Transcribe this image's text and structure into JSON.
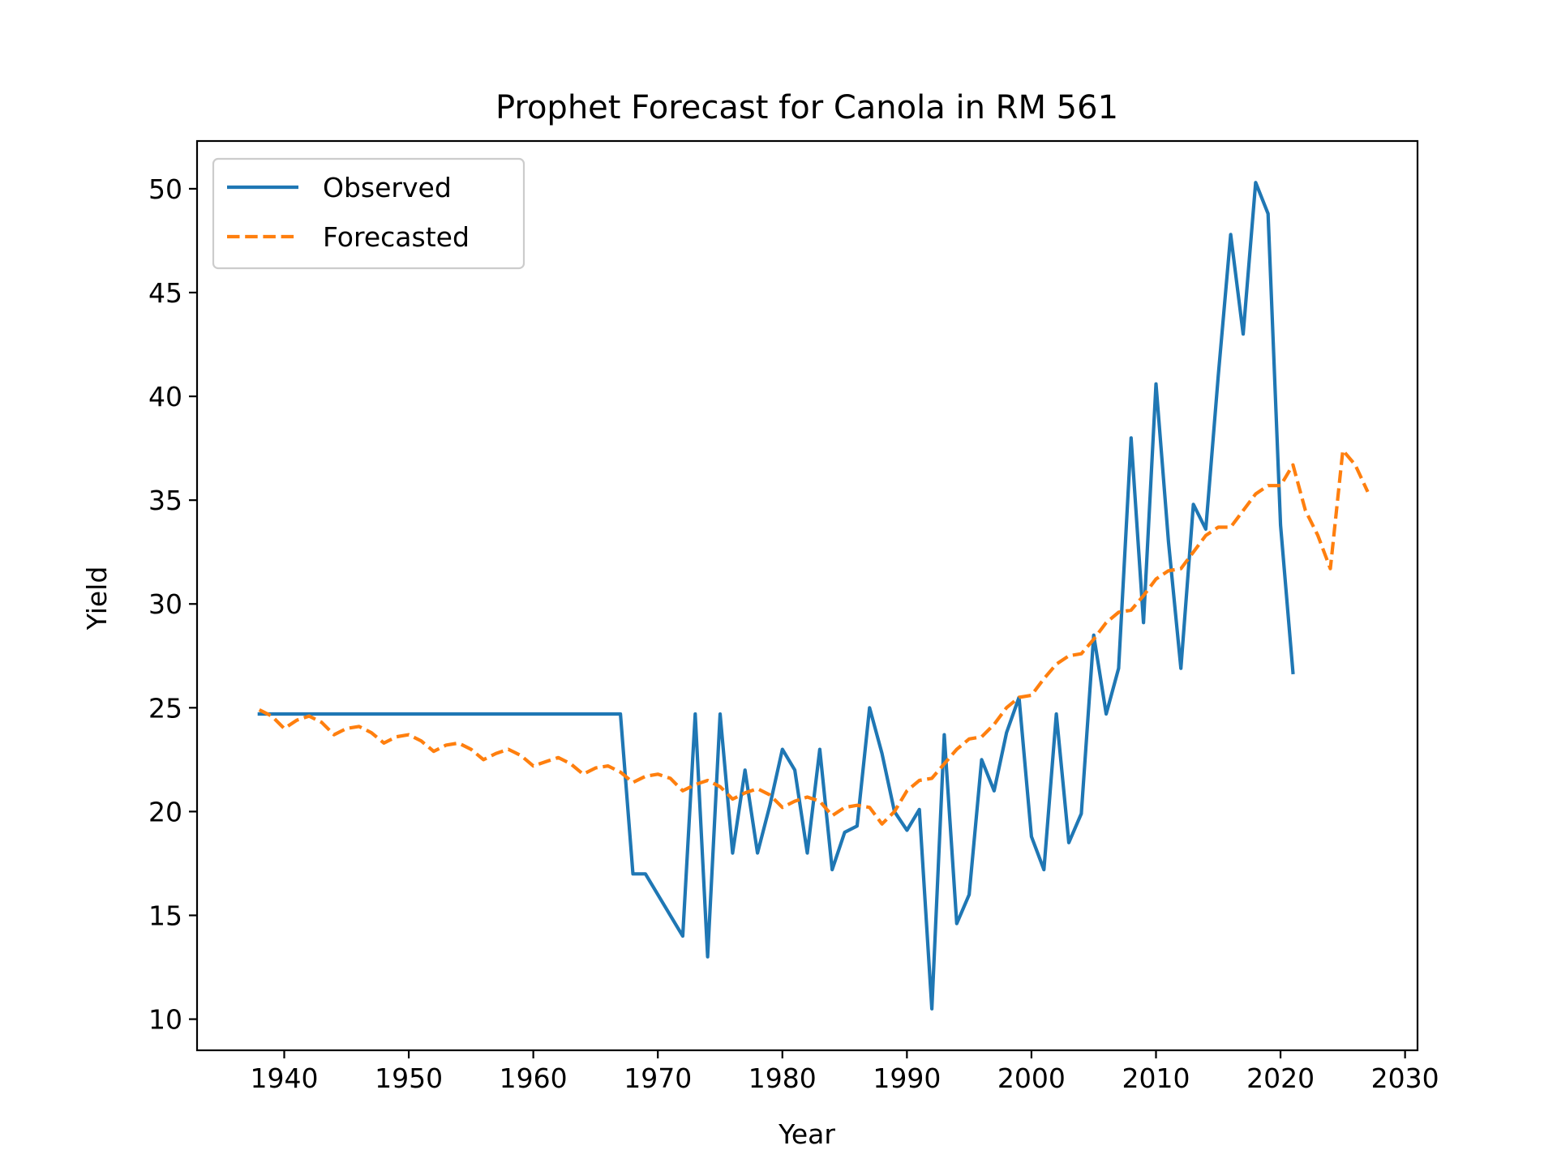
{
  "chart_data": {
    "type": "line",
    "title": "Prophet Forecast for Canola in RM 561",
    "xlabel": "Year",
    "ylabel": "Yield",
    "xlim": [
      1933,
      2031
    ],
    "ylim": [
      8.5,
      52.3
    ],
    "xticks": [
      1940,
      1950,
      1960,
      1970,
      1980,
      1990,
      2000,
      2010,
      2020,
      2030
    ],
    "yticks": [
      10,
      15,
      20,
      25,
      30,
      35,
      40,
      45,
      50
    ],
    "grid": false,
    "legend_position": "upper-left",
    "series": [
      {
        "name": "Observed",
        "color": "#1f77b4",
        "style": "solid",
        "x": [
          1938,
          1967,
          1968,
          1969,
          1972,
          1973,
          1974,
          1975,
          1976,
          1977,
          1978,
          1979,
          1980,
          1981,
          1982,
          1983,
          1984,
          1985,
          1986,
          1987,
          1988,
          1989,
          1990,
          1991,
          1992,
          1993,
          1994,
          1995,
          1996,
          1997,
          1998,
          1999,
          2000,
          2001,
          2002,
          2003,
          2004,
          2005,
          2006,
          2007,
          2008,
          2009,
          2010,
          2011,
          2012,
          2013,
          2014,
          2015,
          2016,
          2017,
          2018,
          2019,
          2020,
          2021
        ],
        "y": [
          24.7,
          24.7,
          17.0,
          17.0,
          14.0,
          24.7,
          13.0,
          24.7,
          18.0,
          22.0,
          18.0,
          20.3,
          23.0,
          22.0,
          18.0,
          23.0,
          17.2,
          19.0,
          19.3,
          25.0,
          22.8,
          20.0,
          19.1,
          20.1,
          10.5,
          23.7,
          14.6,
          16.0,
          22.5,
          21.0,
          23.8,
          25.5,
          18.8,
          17.2,
          24.7,
          18.5,
          19.9,
          28.5,
          24.7,
          26.9,
          38.0,
          29.1,
          40.6,
          33.0,
          26.9,
          34.8,
          33.6,
          41.0,
          47.8,
          43.0,
          50.3,
          48.8,
          33.8,
          26.7
        ]
      },
      {
        "name": "Forecasted",
        "color": "#ff7f0e",
        "style": "dashed",
        "x": [
          1938,
          1939,
          1940,
          1941,
          1942,
          1943,
          1944,
          1945,
          1946,
          1947,
          1948,
          1949,
          1950,
          1951,
          1952,
          1953,
          1954,
          1955,
          1956,
          1957,
          1958,
          1959,
          1960,
          1961,
          1962,
          1963,
          1964,
          1965,
          1966,
          1967,
          1968,
          1969,
          1970,
          1971,
          1972,
          1973,
          1974,
          1975,
          1976,
          1977,
          1978,
          1979,
          1980,
          1981,
          1982,
          1983,
          1984,
          1985,
          1986,
          1987,
          1988,
          1989,
          1990,
          1991,
          1992,
          1993,
          1994,
          1995,
          1996,
          1997,
          1998,
          1999,
          2000,
          2001,
          2002,
          2003,
          2004,
          2005,
          2006,
          2007,
          2008,
          2009,
          2010,
          2011,
          2012,
          2013,
          2014,
          2015,
          2016,
          2017,
          2018,
          2019,
          2020,
          2021,
          2022,
          2023,
          2024,
          2025,
          2026,
          2027
        ],
        "y": [
          24.9,
          24.6,
          24.0,
          24.4,
          24.6,
          24.3,
          23.7,
          24.0,
          24.1,
          23.8,
          23.3,
          23.6,
          23.7,
          23.4,
          22.9,
          23.2,
          23.3,
          23.0,
          22.5,
          22.8,
          23.0,
          22.7,
          22.2,
          22.4,
          22.6,
          22.3,
          21.8,
          22.1,
          22.2,
          21.9,
          21.4,
          21.7,
          21.8,
          21.6,
          21.0,
          21.3,
          21.5,
          21.2,
          20.6,
          20.9,
          21.1,
          20.8,
          20.2,
          20.5,
          20.7,
          20.5,
          19.8,
          20.2,
          20.3,
          20.2,
          19.4,
          20.0,
          21.0,
          21.5,
          21.6,
          22.3,
          23.0,
          23.5,
          23.6,
          24.2,
          25.0,
          25.5,
          25.6,
          26.4,
          27.1,
          27.5,
          27.6,
          28.3,
          29.1,
          29.6,
          29.7,
          30.4,
          31.2,
          31.6,
          31.7,
          32.5,
          33.3,
          33.7,
          33.7,
          34.5,
          35.3,
          35.7,
          35.7,
          36.7,
          34.5,
          33.3,
          31.7,
          37.4,
          36.7,
          35.4
        ]
      }
    ]
  }
}
